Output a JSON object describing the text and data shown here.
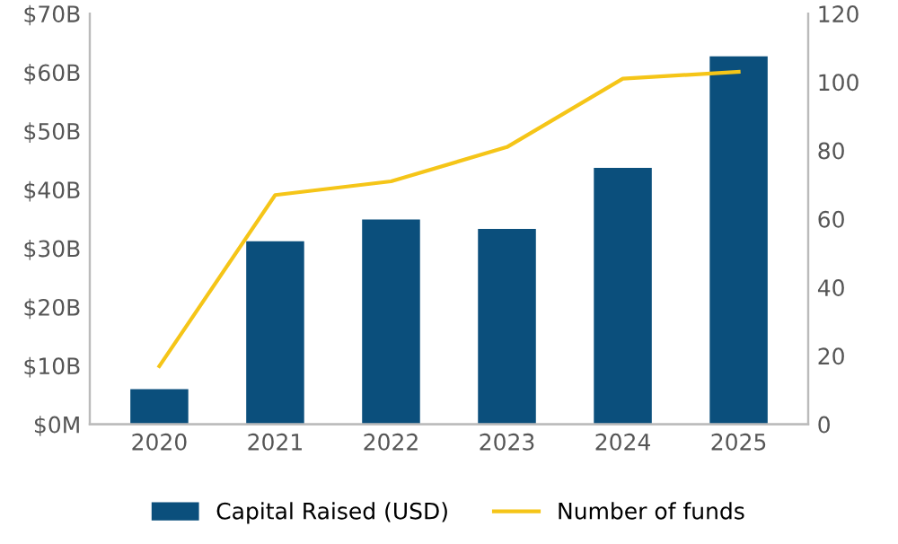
{
  "chart_data": {
    "type": "bar",
    "categories": [
      "2020",
      "2021",
      "2022",
      "2023",
      "2024",
      "2025"
    ],
    "series": [
      {
        "name": "Capital Raised (USD)",
        "color": "#0b4f7c",
        "values": [
          6,
          31.2,
          34.9,
          33.3,
          43.7,
          62.7
        ]
      },
      {
        "name": "Number of funds",
        "type": "line",
        "axis": "y2",
        "color": "#f5c518",
        "values": [
          17,
          67,
          71,
          81,
          101,
          103
        ]
      }
    ],
    "ylim": [
      0,
      70
    ],
    "yticks": [
      {
        "value": 0,
        "label": "$0M"
      },
      {
        "value": 10,
        "label": "$10B"
      },
      {
        "value": 20,
        "label": "$20B"
      },
      {
        "value": 30,
        "label": "$30B"
      },
      {
        "value": 40,
        "label": "$40B"
      },
      {
        "value": 50,
        "label": "$50B"
      },
      {
        "value": 60,
        "label": "$60B"
      },
      {
        "value": 70,
        "label": "$70B"
      }
    ],
    "y2lim": [
      0,
      120
    ],
    "y2ticks": [
      0,
      20,
      40,
      60,
      80,
      100,
      120
    ],
    "legend": "bottom",
    "grid": false,
    "marker": "none"
  }
}
